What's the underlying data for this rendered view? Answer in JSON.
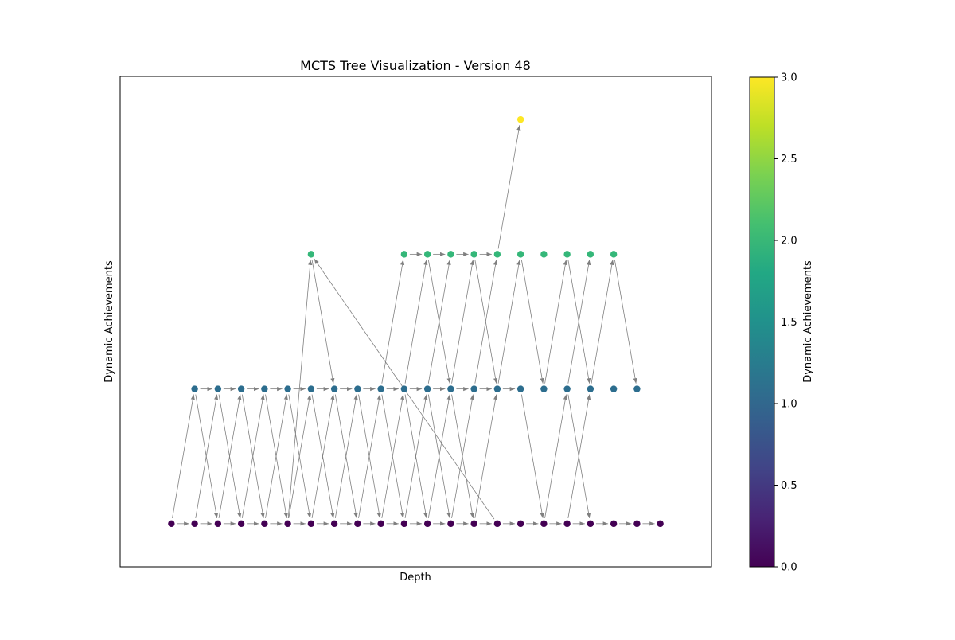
{
  "chart_data": {
    "type": "scatter",
    "title": "MCTS Tree Visualization - Version 48",
    "xlabel": "Depth",
    "ylabel": "Dynamic Achievements",
    "x_ticks_shown": false,
    "y_ticks_shown": false,
    "xlim": [
      -2.2,
      23.2
    ],
    "ylim": [
      -0.32,
      3.32
    ],
    "grid": false,
    "edge_color": "#808080",
    "colormap": "viridis",
    "colorbar": {
      "label": "Dynamic Achievements",
      "range": [
        0.0,
        3.0
      ],
      "ticks": [
        "0.0",
        "0.5",
        "1.0",
        "1.5",
        "2.0",
        "2.5",
        "3.0"
      ]
    },
    "colors": {
      "0": "#440154",
      "1": "#2c6d8e",
      "2": "#35b779",
      "3": "#fde725"
    },
    "nodes": [
      {
        "x": 0,
        "y": 0
      },
      {
        "x": 1,
        "y": 0
      },
      {
        "x": 2,
        "y": 0
      },
      {
        "x": 3,
        "y": 0
      },
      {
        "x": 4,
        "y": 0
      },
      {
        "x": 5,
        "y": 0
      },
      {
        "x": 6,
        "y": 0
      },
      {
        "x": 7,
        "y": 0
      },
      {
        "x": 8,
        "y": 0
      },
      {
        "x": 9,
        "y": 0
      },
      {
        "x": 10,
        "y": 0
      },
      {
        "x": 11,
        "y": 0
      },
      {
        "x": 12,
        "y": 0
      },
      {
        "x": 13,
        "y": 0
      },
      {
        "x": 14,
        "y": 0
      },
      {
        "x": 15,
        "y": 0
      },
      {
        "x": 16,
        "y": 0
      },
      {
        "x": 17,
        "y": 0
      },
      {
        "x": 18,
        "y": 0
      },
      {
        "x": 19,
        "y": 0
      },
      {
        "x": 20,
        "y": 0
      },
      {
        "x": 21,
        "y": 0
      },
      {
        "x": 1,
        "y": 1
      },
      {
        "x": 2,
        "y": 1
      },
      {
        "x": 3,
        "y": 1
      },
      {
        "x": 4,
        "y": 1
      },
      {
        "x": 5,
        "y": 1
      },
      {
        "x": 6,
        "y": 1
      },
      {
        "x": 7,
        "y": 1
      },
      {
        "x": 8,
        "y": 1
      },
      {
        "x": 9,
        "y": 1
      },
      {
        "x": 10,
        "y": 1
      },
      {
        "x": 11,
        "y": 1
      },
      {
        "x": 12,
        "y": 1
      },
      {
        "x": 13,
        "y": 1
      },
      {
        "x": 14,
        "y": 1
      },
      {
        "x": 15,
        "y": 1
      },
      {
        "x": 16,
        "y": 1
      },
      {
        "x": 17,
        "y": 1
      },
      {
        "x": 18,
        "y": 1
      },
      {
        "x": 19,
        "y": 1
      },
      {
        "x": 20,
        "y": 1
      },
      {
        "x": 6,
        "y": 2
      },
      {
        "x": 10,
        "y": 2
      },
      {
        "x": 11,
        "y": 2
      },
      {
        "x": 12,
        "y": 2
      },
      {
        "x": 13,
        "y": 2
      },
      {
        "x": 14,
        "y": 2
      },
      {
        "x": 15,
        "y": 2
      },
      {
        "x": 16,
        "y": 2
      },
      {
        "x": 17,
        "y": 2
      },
      {
        "x": 18,
        "y": 2
      },
      {
        "x": 19,
        "y": 2
      },
      {
        "x": 15,
        "y": 3
      }
    ],
    "edges": [
      [
        [
          0,
          0
        ],
        [
          1,
          0
        ]
      ],
      [
        [
          1,
          0
        ],
        [
          2,
          0
        ]
      ],
      [
        [
          2,
          0
        ],
        [
          3,
          0
        ]
      ],
      [
        [
          3,
          0
        ],
        [
          4,
          0
        ]
      ],
      [
        [
          4,
          0
        ],
        [
          5,
          0
        ]
      ],
      [
        [
          5,
          0
        ],
        [
          6,
          0
        ]
      ],
      [
        [
          6,
          0
        ],
        [
          7,
          0
        ]
      ],
      [
        [
          7,
          0
        ],
        [
          8,
          0
        ]
      ],
      [
        [
          8,
          0
        ],
        [
          9,
          0
        ]
      ],
      [
        [
          9,
          0
        ],
        [
          10,
          0
        ]
      ],
      [
        [
          10,
          0
        ],
        [
          11,
          0
        ]
      ],
      [
        [
          11,
          0
        ],
        [
          12,
          0
        ]
      ],
      [
        [
          12,
          0
        ],
        [
          13,
          0
        ]
      ],
      [
        [
          13,
          0
        ],
        [
          14,
          0
        ]
      ],
      [
        [
          14,
          0
        ],
        [
          15,
          0
        ]
      ],
      [
        [
          15,
          0
        ],
        [
          16,
          0
        ]
      ],
      [
        [
          16,
          0
        ],
        [
          17,
          0
        ]
      ],
      [
        [
          17,
          0
        ],
        [
          18,
          0
        ]
      ],
      [
        [
          18,
          0
        ],
        [
          19,
          0
        ]
      ],
      [
        [
          19,
          0
        ],
        [
          20,
          0
        ]
      ],
      [
        [
          20,
          0
        ],
        [
          21,
          0
        ]
      ],
      [
        [
          1,
          1
        ],
        [
          2,
          1
        ]
      ],
      [
        [
          2,
          1
        ],
        [
          3,
          1
        ]
      ],
      [
        [
          3,
          1
        ],
        [
          4,
          1
        ]
      ],
      [
        [
          4,
          1
        ],
        [
          5,
          1
        ]
      ],
      [
        [
          5,
          1
        ],
        [
          6,
          1
        ]
      ],
      [
        [
          6,
          1
        ],
        [
          7,
          1
        ]
      ],
      [
        [
          7,
          1
        ],
        [
          8,
          1
        ]
      ],
      [
        [
          8,
          1
        ],
        [
          9,
          1
        ]
      ],
      [
        [
          9,
          1
        ],
        [
          10,
          1
        ]
      ],
      [
        [
          10,
          1
        ],
        [
          11,
          1
        ]
      ],
      [
        [
          11,
          1
        ],
        [
          12,
          1
        ]
      ],
      [
        [
          12,
          1
        ],
        [
          13,
          1
        ]
      ],
      [
        [
          13,
          1
        ],
        [
          14,
          1
        ]
      ],
      [
        [
          14,
          1
        ],
        [
          15,
          1
        ]
      ],
      [
        [
          10,
          2
        ],
        [
          11,
          2
        ]
      ],
      [
        [
          11,
          2
        ],
        [
          12,
          2
        ]
      ],
      [
        [
          12,
          2
        ],
        [
          13,
          2
        ]
      ],
      [
        [
          13,
          2
        ],
        [
          14,
          2
        ]
      ],
      [
        [
          0,
          0
        ],
        [
          1,
          1
        ]
      ],
      [
        [
          1,
          0
        ],
        [
          2,
          1
        ]
      ],
      [
        [
          2,
          0
        ],
        [
          3,
          1
        ]
      ],
      [
        [
          3,
          0
        ],
        [
          4,
          1
        ]
      ],
      [
        [
          4,
          0
        ],
        [
          5,
          1
        ]
      ],
      [
        [
          5,
          0
        ],
        [
          6,
          1
        ]
      ],
      [
        [
          6,
          0
        ],
        [
          7,
          1
        ]
      ],
      [
        [
          7,
          0
        ],
        [
          8,
          1
        ]
      ],
      [
        [
          8,
          0
        ],
        [
          9,
          1
        ]
      ],
      [
        [
          9,
          0
        ],
        [
          10,
          1
        ]
      ],
      [
        [
          10,
          0
        ],
        [
          11,
          1
        ]
      ],
      [
        [
          11,
          0
        ],
        [
          12,
          1
        ]
      ],
      [
        [
          12,
          0
        ],
        [
          13,
          1
        ]
      ],
      [
        [
          13,
          0
        ],
        [
          14,
          1
        ]
      ],
      [
        [
          14,
          0
        ],
        [
          6,
          2
        ]
      ],
      [
        [
          16,
          0
        ],
        [
          17,
          1
        ]
      ],
      [
        [
          17,
          0
        ],
        [
          18,
          1
        ]
      ],
      [
        [
          1,
          1
        ],
        [
          2,
          0
        ]
      ],
      [
        [
          2,
          1
        ],
        [
          3,
          0
        ]
      ],
      [
        [
          3,
          1
        ],
        [
          4,
          0
        ]
      ],
      [
        [
          4,
          1
        ],
        [
          5,
          0
        ]
      ],
      [
        [
          5,
          1
        ],
        [
          6,
          0
        ]
      ],
      [
        [
          6,
          1
        ],
        [
          7,
          0
        ]
      ],
      [
        [
          7,
          1
        ],
        [
          8,
          0
        ]
      ],
      [
        [
          8,
          1
        ],
        [
          9,
          0
        ]
      ],
      [
        [
          9,
          1
        ],
        [
          10,
          0
        ]
      ],
      [
        [
          10,
          1
        ],
        [
          11,
          0
        ]
      ],
      [
        [
          11,
          1
        ],
        [
          12,
          0
        ]
      ],
      [
        [
          12,
          1
        ],
        [
          13,
          0
        ]
      ],
      [
        [
          15,
          1
        ],
        [
          16,
          0
        ]
      ],
      [
        [
          17,
          1
        ],
        [
          18,
          0
        ]
      ],
      [
        [
          5,
          0
        ],
        [
          6,
          2
        ]
      ],
      [
        [
          6,
          2
        ],
        [
          7,
          1
        ]
      ],
      [
        [
          9,
          1
        ],
        [
          10,
          2
        ]
      ],
      [
        [
          10,
          1
        ],
        [
          11,
          2
        ]
      ],
      [
        [
          11,
          1
        ],
        [
          12,
          2
        ]
      ],
      [
        [
          12,
          1
        ],
        [
          13,
          2
        ]
      ],
      [
        [
          13,
          1
        ],
        [
          14,
          2
        ]
      ],
      [
        [
          14,
          1
        ],
        [
          15,
          2
        ]
      ],
      [
        [
          16,
          1
        ],
        [
          17,
          2
        ]
      ],
      [
        [
          17,
          1
        ],
        [
          18,
          2
        ]
      ],
      [
        [
          18,
          1
        ],
        [
          19,
          2
        ]
      ],
      [
        [
          11,
          2
        ],
        [
          12,
          1
        ]
      ],
      [
        [
          13,
          2
        ],
        [
          14,
          1
        ]
      ],
      [
        [
          15,
          2
        ],
        [
          16,
          1
        ]
      ],
      [
        [
          17,
          2
        ],
        [
          18,
          1
        ]
      ],
      [
        [
          19,
          2
        ],
        [
          20,
          1
        ]
      ],
      [
        [
          14,
          2
        ],
        [
          15,
          3
        ]
      ]
    ]
  }
}
